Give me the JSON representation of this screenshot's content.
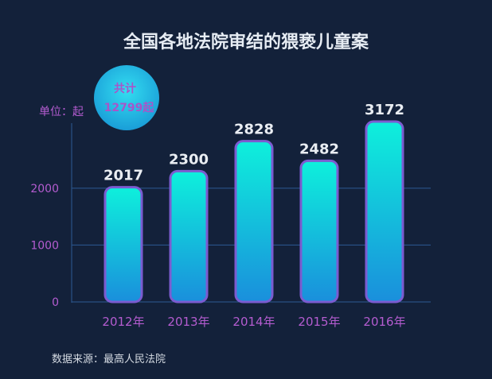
{
  "chart_data": {
    "type": "bar",
    "title": "全国各地法院审结的猥亵儿童案",
    "ylabel": "单位：起",
    "categories": [
      "2012年",
      "2013年",
      "2014年",
      "2015年",
      "2016年"
    ],
    "values": [
      2017,
      2300,
      2828,
      2482,
      3172
    ],
    "yticks": [
      0,
      1000,
      2000
    ],
    "ylim": [
      0,
      3172
    ],
    "grid": true,
    "total_badge": [
      "共计",
      "12799起"
    ],
    "source": "数据来源：最高人民法院",
    "colors": {
      "bar_top": "#0ef0dc",
      "bar_bottom": "#1a8fdc",
      "bar_border": "#7b5cd0",
      "grid": "#2c5a94",
      "accent": "#b45cd0"
    }
  }
}
